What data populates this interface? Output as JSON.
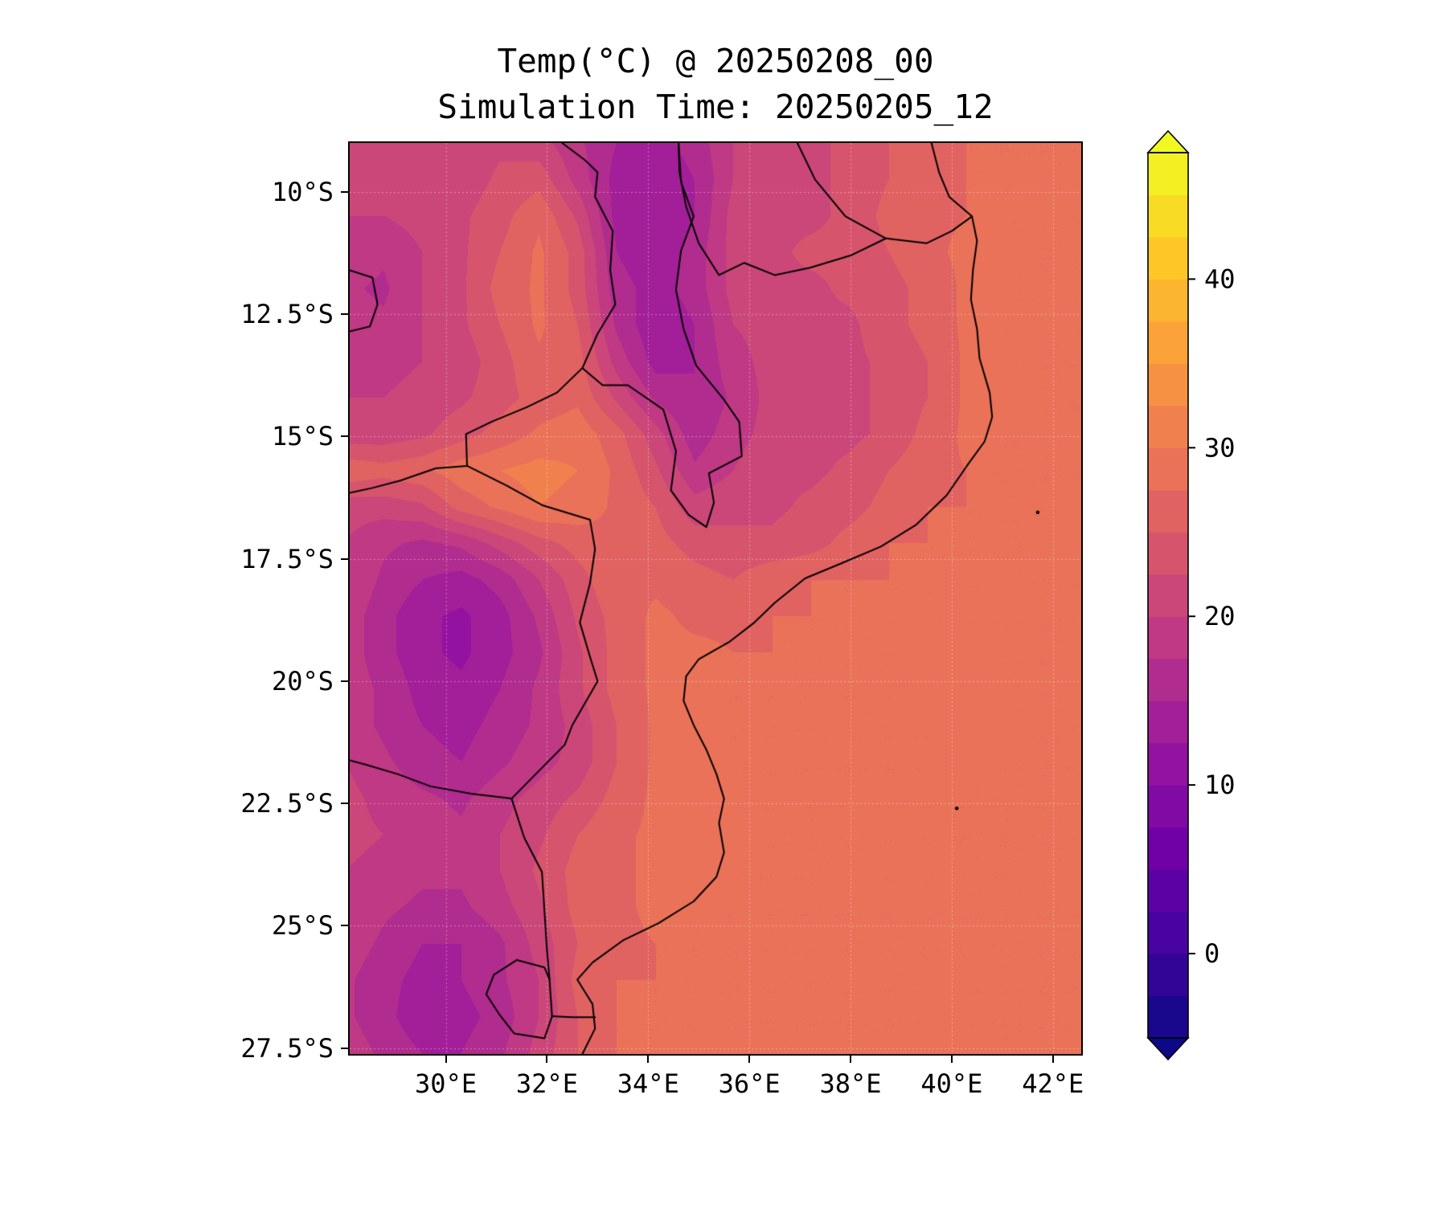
{
  "title": {
    "line1": "Temp(°C) @ 20250208_00",
    "line2": "Simulation Time: 20250205_12"
  },
  "axes": {
    "x": {
      "ticks": [
        {
          "v": 30,
          "label": "30°E"
        },
        {
          "v": 32,
          "label": "32°E"
        },
        {
          "v": 34,
          "label": "34°E"
        },
        {
          "v": 36,
          "label": "36°E"
        },
        {
          "v": 38,
          "label": "38°E"
        },
        {
          "v": 40,
          "label": "40°E"
        },
        {
          "v": 42,
          "label": "42°E"
        }
      ]
    },
    "y": {
      "ticks": [
        {
          "v": 10,
          "label": "10°S"
        },
        {
          "v": 12.5,
          "label": "12.5°S"
        },
        {
          "v": 15,
          "label": "15°S"
        },
        {
          "v": 17.5,
          "label": "17.5°S"
        },
        {
          "v": 20,
          "label": "20°S"
        },
        {
          "v": 22.5,
          "label": "22.5°S"
        },
        {
          "v": 25,
          "label": "25°S"
        },
        {
          "v": 27.5,
          "label": "27.5°S"
        }
      ]
    }
  },
  "chart_data": {
    "type": "heatmap",
    "variable": "Temp(°C)",
    "valid_time": "20250208_00",
    "simulation_time": "20250205_12",
    "extent": {
      "lon_min": 28.1,
      "lon_max": 42.56,
      "lat_min": 9.0,
      "lat_max": 27.62
    },
    "ocean_temp_c": 27.5,
    "colorbar": {
      "vmin": -5,
      "vmax": 47.5,
      "step": 2.5,
      "extend": "both",
      "ticks": [
        {
          "v": 0,
          "label": "0"
        },
        {
          "v": 10,
          "label": "10"
        },
        {
          "v": 20,
          "label": "20"
        },
        {
          "v": 30,
          "label": "30"
        },
        {
          "v": 40,
          "label": "40"
        }
      ],
      "palette": [
        "#0d0887",
        "#46039f",
        "#7201a8",
        "#9c179e",
        "#bd3786",
        "#d8576b",
        "#ed7953",
        "#fb9f3a",
        "#fdca26",
        "#f0f921"
      ]
    },
    "grid": {
      "comment_units": "degC at nodes; lon west-to-east, lat north-to-south",
      "lon_start": 28.0,
      "lon_end": 42.6,
      "lat_start": 9.0,
      "lat_end": 27.6,
      "ncols": 20,
      "nrows": 26,
      "values_c": [
        [
          21,
          21,
          20,
          21,
          22,
          21,
          18,
          15,
          14,
          16,
          20,
          22,
          22,
          23,
          25,
          27,
          27.5,
          27.5,
          27.5,
          27.5
        ],
        [
          21,
          20,
          20,
          21,
          23,
          24,
          19,
          14,
          13,
          15,
          20,
          22,
          22,
          23,
          25,
          27,
          27.5,
          27.5,
          27.5,
          27.5
        ],
        [
          20,
          20,
          21,
          22,
          24,
          27,
          22,
          14,
          13,
          15,
          21,
          22,
          22,
          23,
          26,
          27,
          27.5,
          27.5,
          27.5,
          27.5
        ],
        [
          19,
          18,
          20,
          22,
          25,
          28,
          24,
          15,
          13,
          16,
          21,
          22,
          23,
          23,
          25,
          27,
          28,
          27.5,
          27.5,
          27.5
        ],
        [
          18,
          17,
          20,
          22,
          26,
          28,
          24,
          16,
          14,
          16,
          21,
          22,
          22,
          23,
          24,
          26,
          28,
          27.5,
          27.5,
          27.5
        ],
        [
          19,
          18,
          20,
          22,
          25,
          28,
          25,
          17,
          13,
          15,
          20,
          21,
          22,
          22,
          24,
          26,
          28,
          27.5,
          27.5,
          27.5
        ],
        [
          20,
          19,
          20,
          21,
          24,
          27,
          26,
          19,
          14,
          15,
          19,
          21,
          21,
          22,
          23,
          25,
          28,
          27.5,
          27.5,
          27.5
        ],
        [
          20,
          20,
          21,
          22,
          24,
          26,
          27,
          22,
          17,
          15,
          18,
          21,
          21,
          22,
          23,
          25,
          28,
          28,
          27.5,
          27.5
        ],
        [
          21,
          21,
          22,
          24,
          26,
          28,
          29,
          26,
          21,
          16,
          19,
          21,
          22,
          22,
          23,
          26,
          28,
          27.5,
          27.5,
          27.5
        ],
        [
          27,
          26,
          27,
          29,
          30,
          31,
          30,
          27,
          23,
          18,
          20,
          22,
          22,
          23,
          25,
          27,
          27.5,
          27.5,
          27.5,
          27.5
        ],
        [
          21,
          21,
          22,
          26,
          28,
          30,
          29,
          27,
          25,
          21,
          22,
          22,
          23,
          24,
          26,
          27.5,
          27.5,
          27.5,
          27.5,
          27.5
        ],
        [
          20,
          18,
          17,
          18,
          21,
          24,
          26,
          27,
          26,
          24,
          23,
          23,
          24,
          26,
          27.5,
          27.5,
          27.5,
          27.5,
          27.5,
          27.5
        ],
        [
          20,
          17,
          15,
          14,
          16,
          20,
          24,
          27,
          27,
          26,
          25,
          27,
          27.5,
          27.5,
          27.5,
          27.5,
          27.5,
          27.5,
          27.5,
          27.5
        ],
        [
          19,
          16,
          13,
          12,
          14,
          18,
          23,
          26,
          28,
          27,
          27,
          27.5,
          27.5,
          27.5,
          27.5,
          27.5,
          27.5,
          27.5,
          27.5,
          27.5
        ],
        [
          19,
          16,
          13,
          12,
          14,
          17,
          22,
          26,
          28,
          28,
          27.5,
          27.5,
          27.5,
          27.5,
          27.5,
          27.5,
          27.5,
          27.5,
          27.5,
          27.5
        ],
        [
          19,
          17,
          14,
          13,
          15,
          18,
          22,
          26,
          28,
          27.5,
          27.5,
          27.5,
          27.5,
          27.5,
          27.5,
          27.5,
          30,
          27.5,
          27.5,
          27.5
        ],
        [
          19,
          17,
          15,
          14,
          16,
          18,
          21,
          25,
          28,
          27.5,
          27.5,
          27.5,
          27.5,
          27.5,
          27.5,
          27.5,
          29,
          27.5,
          27.5,
          27.5
        ],
        [
          20,
          18,
          16,
          15,
          17,
          19,
          21,
          25,
          28,
          28,
          27.5,
          27.5,
          27.5,
          27.5,
          27.5,
          27.5,
          27.5,
          27.5,
          27.5,
          27.5
        ],
        [
          21,
          19,
          18,
          17,
          19,
          21,
          23,
          26,
          28,
          28,
          27.5,
          27.5,
          27.5,
          27.5,
          27.5,
          27.5,
          27.5,
          27.5,
          27.5,
          27.5
        ],
        [
          21,
          20,
          19,
          18,
          20,
          22,
          25,
          27,
          28,
          28,
          27.5,
          27.5,
          27.5,
          27.5,
          27.5,
          27.5,
          27.5,
          27.5,
          27.5,
          27.5
        ],
        [
          20,
          19,
          18,
          18,
          20,
          23,
          26,
          27,
          28,
          28,
          27.5,
          27.5,
          27.5,
          27.5,
          27.5,
          27.5,
          27.5,
          27.5,
          27.5,
          27.5
        ],
        [
          20,
          18,
          17,
          17,
          19,
          22,
          26,
          27,
          28,
          27.5,
          27.5,
          27.5,
          27.5,
          27.5,
          27.5,
          27.5,
          27.5,
          27.5,
          27.5,
          27.5
        ],
        [
          19,
          17,
          15,
          15,
          17,
          21,
          25,
          27,
          27.5,
          27.5,
          27.5,
          27.5,
          27.5,
          27.5,
          27.5,
          27.5,
          27.5,
          27.5,
          27.5,
          27.5
        ],
        [
          18,
          16,
          14,
          15,
          17,
          20,
          26,
          27.5,
          27.5,
          27.5,
          27.5,
          27.5,
          27.5,
          27.5,
          27.5,
          27.5,
          27.5,
          27.5,
          27.5,
          27.5
        ],
        [
          18,
          16,
          13,
          14,
          16,
          20,
          25,
          27.5,
          27.5,
          27.5,
          27.5,
          27.5,
          27.5,
          27.5,
          27.5,
          27.5,
          27.5,
          27.5,
          27.5,
          27.5
        ],
        [
          19,
          17,
          15,
          15,
          17,
          21,
          25,
          27.5,
          27.5,
          27.5,
          27.5,
          27.5,
          27.5,
          27.5,
          27.5,
          27.5,
          27.5,
          27.5,
          27.5,
          27.5
        ]
      ]
    },
    "borders": {
      "coastline": [
        [
          39.6,
          9.0
        ],
        [
          39.75,
          9.6
        ],
        [
          39.95,
          10.1
        ],
        [
          40.4,
          10.5
        ],
        [
          40.5,
          11.0
        ],
        [
          40.42,
          11.6
        ],
        [
          40.38,
          12.2
        ],
        [
          40.5,
          12.8
        ],
        [
          40.55,
          13.4
        ],
        [
          40.75,
          14.1
        ],
        [
          40.8,
          14.6
        ],
        [
          40.65,
          15.1
        ],
        [
          40.3,
          15.6
        ],
        [
          39.9,
          16.2
        ],
        [
          39.3,
          16.8
        ],
        [
          38.6,
          17.25
        ],
        [
          37.8,
          17.6
        ],
        [
          37.1,
          17.9
        ],
        [
          36.5,
          18.4
        ],
        [
          36.1,
          18.8
        ],
        [
          35.6,
          19.2
        ],
        [
          35.0,
          19.55
        ],
        [
          34.75,
          19.9
        ],
        [
          34.7,
          20.4
        ],
        [
          34.9,
          20.9
        ],
        [
          35.15,
          21.4
        ],
        [
          35.35,
          21.9
        ],
        [
          35.5,
          22.4
        ],
        [
          35.4,
          22.9
        ],
        [
          35.5,
          23.5
        ],
        [
          35.35,
          24.0
        ],
        [
          34.9,
          24.5
        ],
        [
          34.2,
          24.95
        ],
        [
          33.5,
          25.3
        ],
        [
          32.9,
          25.75
        ],
        [
          32.6,
          26.1
        ],
        [
          32.75,
          26.35
        ],
        [
          32.9,
          26.6
        ],
        [
          32.95,
          27.1
        ],
        [
          32.7,
          27.62
        ]
      ],
      "tanzania_mozambique": [
        [
          40.4,
          10.5
        ],
        [
          40.0,
          10.8
        ],
        [
          39.5,
          11.05
        ],
        [
          38.7,
          10.95
        ],
        [
          37.9,
          10.5
        ],
        [
          37.3,
          9.75
        ],
        [
          36.95,
          9.0
        ]
      ],
      "ruvuma_west": [
        [
          38.7,
          10.95
        ],
        [
          38.0,
          11.3
        ],
        [
          37.2,
          11.55
        ],
        [
          36.5,
          11.7
        ],
        [
          35.9,
          11.45
        ],
        [
          35.4,
          11.7
        ],
        [
          35.0,
          11.05
        ],
        [
          34.75,
          10.3
        ],
        [
          34.62,
          9.6
        ],
        [
          34.6,
          9.0
        ]
      ],
      "malawi": [
        [
          32.3,
          9.0
        ],
        [
          32.75,
          9.35
        ],
        [
          33.0,
          9.6
        ],
        [
          32.95,
          10.1
        ],
        [
          33.3,
          10.8
        ],
        [
          33.25,
          11.6
        ],
        [
          33.35,
          12.3
        ],
        [
          33.0,
          12.9
        ],
        [
          32.7,
          13.6
        ],
        [
          33.1,
          13.95
        ],
        [
          33.6,
          13.95
        ],
        [
          34.3,
          14.45
        ],
        [
          34.55,
          15.3
        ],
        [
          34.45,
          16.1
        ],
        [
          34.8,
          16.6
        ],
        [
          35.15,
          16.85
        ],
        [
          35.3,
          16.35
        ],
        [
          35.2,
          15.75
        ],
        [
          35.85,
          15.4
        ],
        [
          35.8,
          14.7
        ],
        [
          35.5,
          14.25
        ],
        [
          34.95,
          13.55
        ],
        [
          34.7,
          12.8
        ],
        [
          34.55,
          12.0
        ],
        [
          34.65,
          11.2
        ],
        [
          34.9,
          10.5
        ],
        [
          34.65,
          9.8
        ],
        [
          34.6,
          9.0
        ]
      ],
      "zambia_mozambique": [
        [
          32.7,
          13.6
        ],
        [
          32.2,
          14.1
        ],
        [
          31.6,
          14.4
        ],
        [
          30.9,
          14.7
        ],
        [
          30.4,
          14.95
        ],
        [
          30.42,
          15.6
        ],
        [
          29.8,
          15.65
        ],
        [
          29.1,
          15.9
        ],
        [
          28.55,
          16.05
        ],
        [
          28.1,
          16.15
        ]
      ],
      "zimbabwe_mozambique": [
        [
          30.42,
          15.6
        ],
        [
          31.2,
          16.0
        ],
        [
          31.9,
          16.4
        ],
        [
          32.85,
          16.7
        ],
        [
          32.95,
          17.3
        ],
        [
          32.85,
          18.0
        ],
        [
          32.65,
          18.8
        ],
        [
          32.85,
          19.5
        ],
        [
          33.0,
          20.0
        ],
        [
          32.5,
          20.9
        ],
        [
          32.35,
          21.3
        ],
        [
          31.3,
          22.4
        ]
      ],
      "zimbabwe_southafrica": [
        [
          31.3,
          22.4
        ],
        [
          30.5,
          22.3
        ],
        [
          29.7,
          22.15
        ],
        [
          29.05,
          21.9
        ],
        [
          28.4,
          21.7
        ],
        [
          28.1,
          21.62
        ]
      ],
      "southafrica_mozambique": [
        [
          31.3,
          22.4
        ],
        [
          31.55,
          23.2
        ],
        [
          31.9,
          23.9
        ],
        [
          31.95,
          24.7
        ],
        [
          32.0,
          25.5
        ],
        [
          32.05,
          26.1
        ]
      ],
      "eswatini": [
        [
          32.05,
          26.1
        ],
        [
          31.95,
          25.85
        ],
        [
          31.4,
          25.7
        ],
        [
          30.95,
          26.0
        ],
        [
          30.8,
          26.4
        ],
        [
          31.05,
          26.8
        ],
        [
          31.35,
          27.2
        ],
        [
          31.95,
          27.3
        ],
        [
          32.1,
          26.85
        ],
        [
          32.05,
          26.1
        ]
      ],
      "southafrica_mozambique_south": [
        [
          32.1,
          26.85
        ],
        [
          32.5,
          26.87
        ],
        [
          32.95,
          26.87
        ]
      ],
      "congo_pedicle": [
        [
          28.1,
          11.6
        ],
        [
          28.55,
          11.75
        ],
        [
          28.65,
          12.3
        ],
        [
          28.5,
          12.75
        ],
        [
          28.1,
          12.85
        ]
      ]
    },
    "islands": [
      [
        40.1,
        22.6
      ],
      [
        41.7,
        16.55
      ]
    ]
  }
}
